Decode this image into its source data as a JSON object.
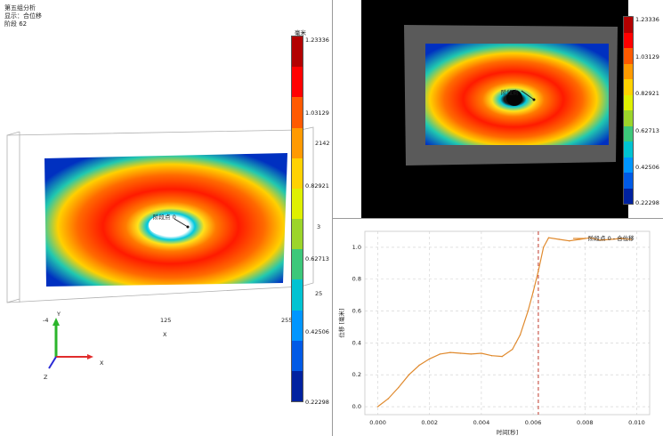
{
  "header": {
    "line1": "第五组分析",
    "line2": "显示：合位移",
    "line3": "阶段 62"
  },
  "unit": "毫米",
  "colorbar": {
    "ticks": [
      "1.23336",
      "1.03129",
      "0.82921",
      "0.62713",
      "0.42506",
      "0.22298"
    ],
    "colors": [
      "#b30000",
      "#ff0000",
      "#ff5a00",
      "#ff9a00",
      "#ffd200",
      "#dff000",
      "#9cd52a",
      "#3cc87a",
      "#00c3d2",
      "#0096ff",
      "#005ae6",
      "#0022a0"
    ]
  },
  "left_view": {
    "point_label": "阶段点 0",
    "x_ticks": [
      "-4",
      "125",
      "255"
    ],
    "x_axis_title": "X",
    "right_edge_labels": [
      "2142",
      "3",
      "25"
    ],
    "triad": {
      "y": "Y",
      "x": "X",
      "z": "Z"
    },
    "triad_colors": {
      "y": "#2bb52b",
      "x": "#e12c2c",
      "z": "#2b2bd6"
    }
  },
  "right_view": {
    "point_label": "阶段点"
  },
  "chart_data": {
    "type": "line",
    "xlabel": "时间[秒]",
    "ylabel": "位移 [毫米]",
    "xlim": [
      -0.0005,
      0.0105
    ],
    "ylim": [
      -0.05,
      1.1
    ],
    "x_ticks": [
      "0.000",
      "0.002",
      "0.004",
      "0.006",
      "0.008",
      "0.010"
    ],
    "y_ticks": [
      "0.0",
      "0.2",
      "0.4",
      "0.6",
      "0.8",
      "1.0"
    ],
    "grid": true,
    "legend_position": "top-right",
    "marker_line_x": 0.0062,
    "series": [
      {
        "name": "阶段点 0 - 合位移",
        "color": "#e08a2e",
        "x": [
          0.0,
          0.0004,
          0.0008,
          0.0012,
          0.0016,
          0.002,
          0.0024,
          0.0028,
          0.0032,
          0.0036,
          0.004,
          0.0044,
          0.0048,
          0.0052,
          0.0055,
          0.0058,
          0.006,
          0.0062,
          0.0064,
          0.0066,
          0.007,
          0.0074,
          0.0078,
          0.0082,
          0.0086,
          0.009,
          0.0094,
          0.0098
        ],
        "y": [
          0.0,
          0.05,
          0.12,
          0.2,
          0.26,
          0.3,
          0.33,
          0.34,
          0.335,
          0.33,
          0.335,
          0.32,
          0.315,
          0.36,
          0.45,
          0.6,
          0.72,
          0.85,
          1.0,
          1.06,
          1.05,
          1.04,
          1.05,
          1.06,
          1.045,
          1.05,
          1.055,
          1.05
        ]
      }
    ]
  }
}
